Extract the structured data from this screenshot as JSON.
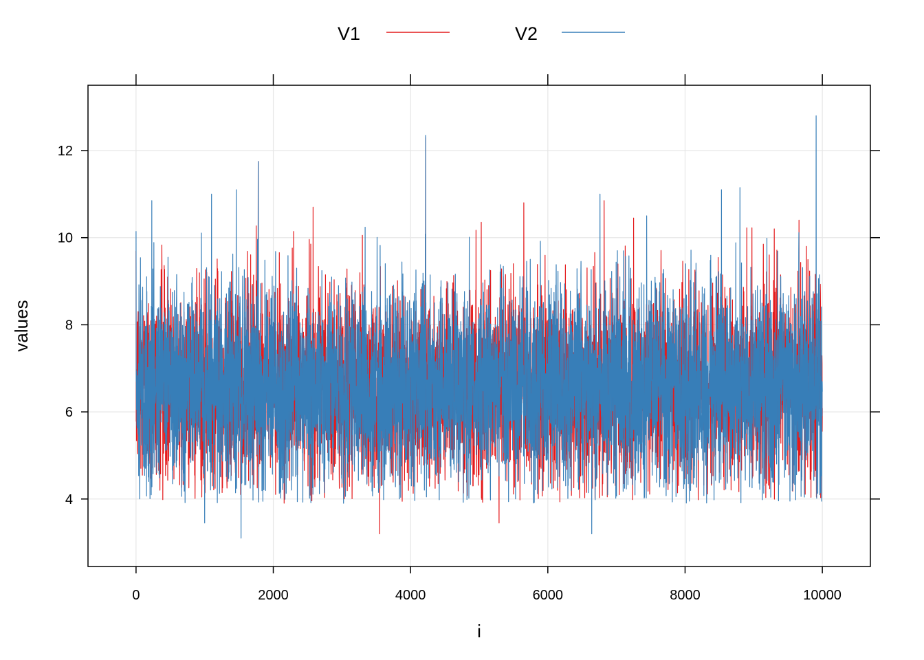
{
  "chart_data": {
    "type": "line",
    "title": "",
    "xlabel": "i",
    "ylabel": "values",
    "xlim": [
      -700,
      10700
    ],
    "ylim": [
      2.45,
      13.5
    ],
    "xticks": [
      0,
      2000,
      4000,
      6000,
      8000,
      10000
    ],
    "yticks": [
      4,
      6,
      8,
      10,
      12
    ],
    "xtick_labels": [
      "0",
      "2000",
      "4000",
      "6000",
      "8000",
      "10000"
    ],
    "ytick_labels": [
      "4",
      "6",
      "8",
      "10",
      "12"
    ],
    "grid": true,
    "legend_position": "top",
    "n_points": 10000,
    "series": [
      {
        "name": "V1",
        "color": "#e41a1c",
        "mean": 6.6,
        "typical_range": [
          5.3,
          8.2
        ],
        "peaks": [
          {
            "x": 1780,
            "y": 11.75
          },
          {
            "x": 2580,
            "y": 10.7
          },
          {
            "x": 3550,
            "y": 3.2
          },
          {
            "x": 4220,
            "y": 12.3
          },
          {
            "x": 5030,
            "y": 10.35
          },
          {
            "x": 5290,
            "y": 3.45
          },
          {
            "x": 5650,
            "y": 10.8
          },
          {
            "x": 6820,
            "y": 10.85
          },
          {
            "x": 7250,
            "y": 10.45
          },
          {
            "x": 9300,
            "y": 10.2
          },
          {
            "x": 9660,
            "y": 10.4
          }
        ]
      },
      {
        "name": "V2",
        "color": "#377eb8",
        "mean": 6.6,
        "typical_range": [
          5.2,
          8.2
        ],
        "peaks": [
          {
            "x": 0,
            "y": 10.15
          },
          {
            "x": 230,
            "y": 10.85
          },
          {
            "x": 1000,
            "y": 3.45
          },
          {
            "x": 1100,
            "y": 11.0
          },
          {
            "x": 1460,
            "y": 11.1
          },
          {
            "x": 1530,
            "y": 3.1
          },
          {
            "x": 1780,
            "y": 11.75
          },
          {
            "x": 4220,
            "y": 12.35
          },
          {
            "x": 6640,
            "y": 3.2
          },
          {
            "x": 6760,
            "y": 11.0
          },
          {
            "x": 7440,
            "y": 10.5
          },
          {
            "x": 8530,
            "y": 11.1
          },
          {
            "x": 8800,
            "y": 11.15
          },
          {
            "x": 9910,
            "y": 12.8
          },
          {
            "x": 9990,
            "y": 3.95
          }
        ]
      }
    ]
  }
}
